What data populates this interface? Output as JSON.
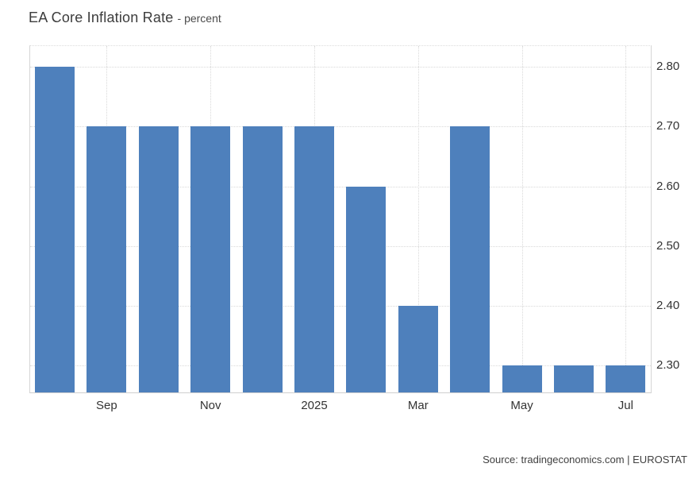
{
  "page": {
    "background": "#ffffff"
  },
  "chart_data": {
    "type": "bar",
    "title": "EA Core Inflation Rate",
    "subtitle": "- percent",
    "source": "Source: tradingeconomics.com | EUROSTAT",
    "bar_color": "#4e80bc",
    "grid": true,
    "legend_position": "none",
    "values": [
      2.8,
      2.7,
      2.7,
      2.7,
      2.7,
      2.7,
      2.6,
      2.4,
      2.7,
      2.3,
      2.3,
      2.3
    ],
    "x_tick_labels": [
      {
        "bar_index": 1,
        "label": "Sep"
      },
      {
        "bar_index": 3,
        "label": "Nov"
      },
      {
        "bar_index": 5,
        "label": "2025"
      },
      {
        "bar_index": 7,
        "label": "Mar"
      },
      {
        "bar_index": 9,
        "label": "May"
      },
      {
        "bar_index": 11,
        "label": "Jul"
      }
    ],
    "y_ticks": [
      {
        "value": 2.3,
        "label": "2.30"
      },
      {
        "value": 2.4,
        "label": "2.40"
      },
      {
        "value": 2.5,
        "label": "2.50"
      },
      {
        "value": 2.6,
        "label": "2.60"
      },
      {
        "value": 2.7,
        "label": "2.70"
      },
      {
        "value": 2.8,
        "label": "2.80"
      }
    ],
    "ylim": [
      2.255,
      2.835
    ]
  }
}
